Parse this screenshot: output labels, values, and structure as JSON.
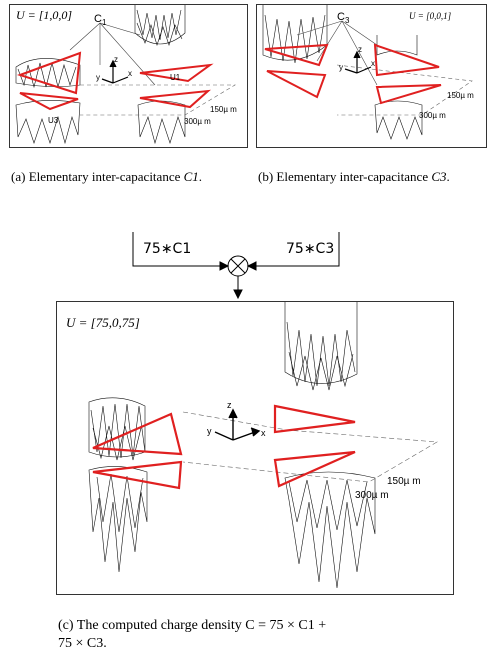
{
  "figure_a": {
    "u_label": "U = [1,0,0]",
    "c_label": "C",
    "c_sub": "1",
    "u1_label": "U1",
    "u3_label": "U3",
    "dist_label": "150µ m",
    "dist2_label": "300µ m",
    "axis_z": "z",
    "axis_x": "x",
    "axis_y": "y",
    "caption_prefix": "(a)",
    "caption_text": "Elementary inter-capacitance",
    "caption_math": "C1",
    "caption_end": "."
  },
  "figure_b": {
    "u_label": "U = [0,0,1]",
    "c_label": "C",
    "c_sub": "3",
    "dist_label": "150µ m",
    "dist2_label": "300µ m",
    "axis_z": "z",
    "axis_x": "x",
    "axis_y": "y",
    "caption_prefix": "(b)",
    "caption_text": "Elementary inter-capacitance",
    "caption_math": "C3",
    "caption_end": "."
  },
  "combiner": {
    "left_input": "75∗C1",
    "right_input": "75∗C3"
  },
  "figure_c": {
    "u_label": "U = [75,0,75]",
    "dist_label": "150µ m",
    "dist2_label": "300µ m",
    "axis_z": "z",
    "axis_x": "x",
    "axis_y": "y",
    "caption_line1": "(c) The computed charge density C = 75 × C1 +",
    "caption_line2": "75 × C3."
  },
  "colors": {
    "triangle": "#e02020",
    "mesh": "#111111",
    "frame": "#333333"
  }
}
